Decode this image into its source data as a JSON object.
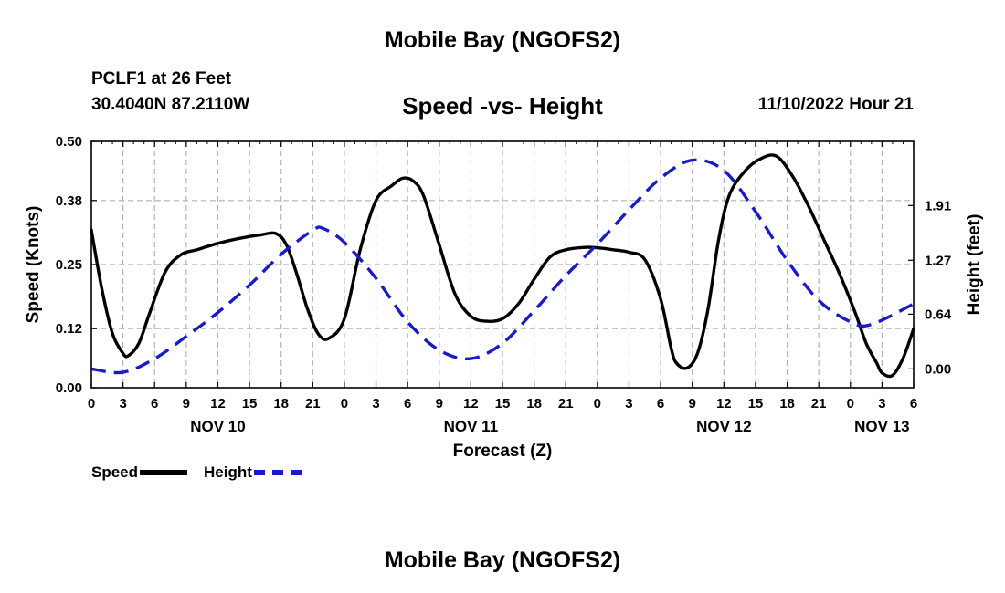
{
  "header": {
    "title": "Mobile Bay (NGOFS2)",
    "station": "PCLF1 at 26 Feet",
    "coords": "30.4040N  87.2110W",
    "subtitle": "Speed -vs- Height",
    "datetime": "11/10/2022 Hour 21"
  },
  "footer": {
    "title": "Mobile Bay (NGOFS2)"
  },
  "legend": {
    "speed_label": "Speed",
    "height_label": "Height"
  },
  "colors": {
    "speed": "#000000",
    "height": "#1a1acc",
    "grid": "#b4b4b4"
  },
  "chart_data": {
    "type": "line",
    "title": "Speed -vs- Height",
    "xlabel": "Forecast (Z)",
    "ylabel": "Speed (Knots)",
    "ylabel_right": "Height (feet)",
    "xlim": [
      0,
      78
    ],
    "ylim": [
      0,
      0.5
    ],
    "ylim_right": [
      -0.22,
      2.66
    ],
    "grid": true,
    "legend_position": "bottom-left",
    "x_ticks": [
      0,
      3,
      6,
      9,
      12,
      15,
      18,
      21,
      24,
      27,
      30,
      33,
      36,
      39,
      42,
      45,
      48,
      51,
      54,
      57,
      60,
      63,
      66,
      69,
      72,
      75,
      78
    ],
    "x_tick_labels": [
      "0",
      "3",
      "6",
      "9",
      "12",
      "15",
      "18",
      "21",
      "0",
      "3",
      "6",
      "9",
      "12",
      "15",
      "18",
      "21",
      "0",
      "3",
      "6",
      "9",
      "12",
      "15",
      "18",
      "21",
      "0",
      "3",
      "6"
    ],
    "day_labels": [
      {
        "x": 12,
        "label": "NOV 10"
      },
      {
        "x": 36,
        "label": "NOV 11"
      },
      {
        "x": 60,
        "label": "NOV 12"
      },
      {
        "x": 75,
        "label": "NOV 13"
      }
    ],
    "y_ticks": [
      0,
      0.12,
      0.25,
      0.38,
      0.5
    ],
    "y_tick_labels": [
      "0.00",
      "0.12",
      "0.25",
      "0.38",
      "0.50"
    ],
    "y_right_ticks": [
      0,
      0.64,
      1.27,
      1.91
    ],
    "y_right_tick_labels": [
      "0.00",
      "0.64",
      "1.27",
      "1.91"
    ],
    "series": [
      {
        "name": "Speed",
        "axis": "left",
        "style": "solid",
        "x": [
          0,
          1,
          2,
          3,
          3.5,
          4.5,
          5.5,
          7,
          8.5,
          10,
          12,
          14,
          16,
          17.5,
          18.5,
          19.5,
          20.5,
          21.5,
          22.5,
          24,
          25.5,
          27,
          28.5,
          29.5,
          30.5,
          31.5,
          33,
          34.5,
          36,
          37.5,
          39,
          40.5,
          42,
          43.5,
          45,
          47,
          48.5,
          49.5,
          51,
          52.5,
          54,
          55,
          55.5,
          56.5,
          57.5,
          58.5,
          59.5,
          60.5,
          62,
          63.5,
          65,
          66.5,
          68,
          69.5,
          71,
          72.5,
          73.5,
          74.5,
          75,
          76,
          77,
          78
        ],
        "y": [
          0.32,
          0.2,
          0.11,
          0.07,
          0.065,
          0.09,
          0.15,
          0.235,
          0.27,
          0.28,
          0.293,
          0.303,
          0.31,
          0.313,
          0.29,
          0.23,
          0.16,
          0.11,
          0.1,
          0.14,
          0.28,
          0.38,
          0.41,
          0.425,
          0.42,
          0.39,
          0.29,
          0.19,
          0.145,
          0.135,
          0.14,
          0.17,
          0.22,
          0.265,
          0.28,
          0.285,
          0.283,
          0.28,
          0.275,
          0.26,
          0.18,
          0.08,
          0.05,
          0.04,
          0.07,
          0.16,
          0.3,
          0.39,
          0.44,
          0.465,
          0.47,
          0.43,
          0.37,
          0.3,
          0.23,
          0.15,
          0.09,
          0.05,
          0.03,
          0.025,
          0.06,
          0.12
        ]
      },
      {
        "name": "Height",
        "axis": "right",
        "style": "dashed",
        "x": [
          0,
          3,
          6,
          9,
          12,
          15,
          18,
          21,
          22,
          24,
          27,
          30,
          33,
          36,
          39,
          42,
          45,
          48,
          51,
          54,
          57,
          60,
          63,
          66,
          69,
          72,
          74,
          78
        ],
        "y": [
          0,
          -0.04,
          0.12,
          0.38,
          0.66,
          0.98,
          1.34,
          1.62,
          1.64,
          1.48,
          1.06,
          0.55,
          0.22,
          0.12,
          0.3,
          0.68,
          1.09,
          1.46,
          1.86,
          2.23,
          2.44,
          2.32,
          1.84,
          1.27,
          0.8,
          0.55,
          0.52,
          0.76
        ]
      }
    ]
  }
}
